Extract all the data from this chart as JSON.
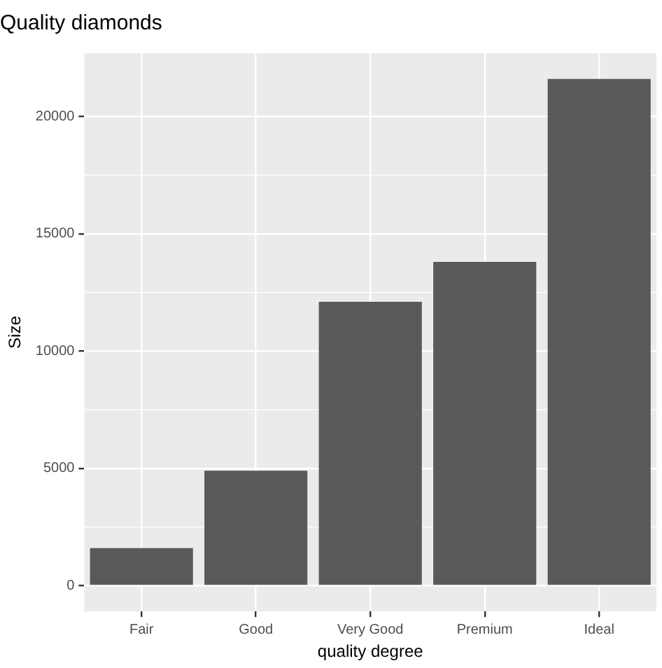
{
  "chart_data": {
    "type": "bar",
    "title": "Quality diamonds",
    "xlabel": "quality degree",
    "ylabel": "Size",
    "categories": [
      "Fair",
      "Good",
      "Very Good",
      "Premium",
      "Ideal"
    ],
    "values": [
      1600,
      4900,
      12100,
      13800,
      21600
    ],
    "color": "#595959",
    "ylim": [
      -1100,
      22700
    ],
    "yticks": [
      0,
      5000,
      10000,
      15000,
      20000
    ],
    "grid": true,
    "legend": false
  }
}
